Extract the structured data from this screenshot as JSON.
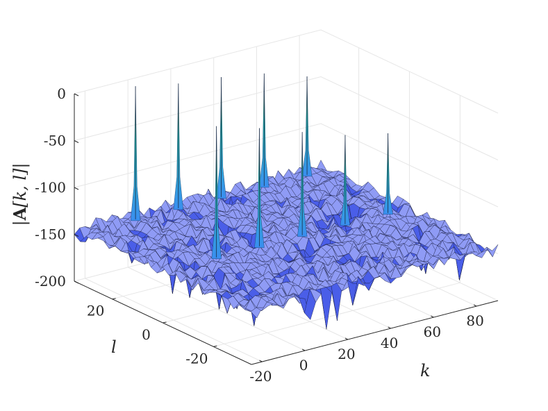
{
  "chart_data": {
    "type": "surface",
    "title": "",
    "xlabel": "k",
    "ylabel": "l",
    "zlabel": "|A[k, l]|",
    "zlabel_parts": {
      "left_bar": "|",
      "bold": "A",
      "bracket": "[k, l]",
      "right_bar": "|"
    },
    "xlim": [
      -25,
      90
    ],
    "ylim": [
      -35,
      35
    ],
    "zlim": [
      -200,
      0
    ],
    "xticks": [
      -20,
      0,
      20,
      40,
      60,
      80
    ],
    "yticks": [
      -20,
      0,
      20
    ],
    "zticks": [
      0,
      -50,
      -100,
      -150,
      -200
    ],
    "xtick_labels": [
      "-20",
      "0",
      "20",
      "40",
      "60",
      "80"
    ],
    "ytick_labels": [
      "-20",
      "0",
      "20"
    ],
    "ztick_labels": [
      "0",
      "-50",
      "-100",
      "-150",
      "-200"
    ],
    "noise_floor": -145,
    "grid": true,
    "colormap": "parula",
    "peaks": [
      {
        "k": 0,
        "l": 32,
        "value": -3
      },
      {
        "k": 20,
        "l": 32,
        "value": -12
      },
      {
        "k": 40,
        "l": 32,
        "value": -17
      },
      {
        "k": 60,
        "l": 32,
        "value": -25
      },
      {
        "k": 80,
        "l": 32,
        "value": -40
      },
      {
        "k": 0,
        "l": 0,
        "value": -5
      },
      {
        "k": 20,
        "l": 0,
        "value": -19
      },
      {
        "k": 40,
        "l": 0,
        "value": -35
      },
      {
        "k": 60,
        "l": 0,
        "value": -50
      },
      {
        "k": 80,
        "l": 0,
        "value": -60
      }
    ]
  },
  "colors": {
    "floor": "#4a5ee8",
    "floor_light": "#8f9bf5",
    "mesh_edge": "#14183a",
    "peak_base": "#3a8ef0",
    "peak_mid": "#20c4b0",
    "peak_tip": "#f2d23a"
  }
}
